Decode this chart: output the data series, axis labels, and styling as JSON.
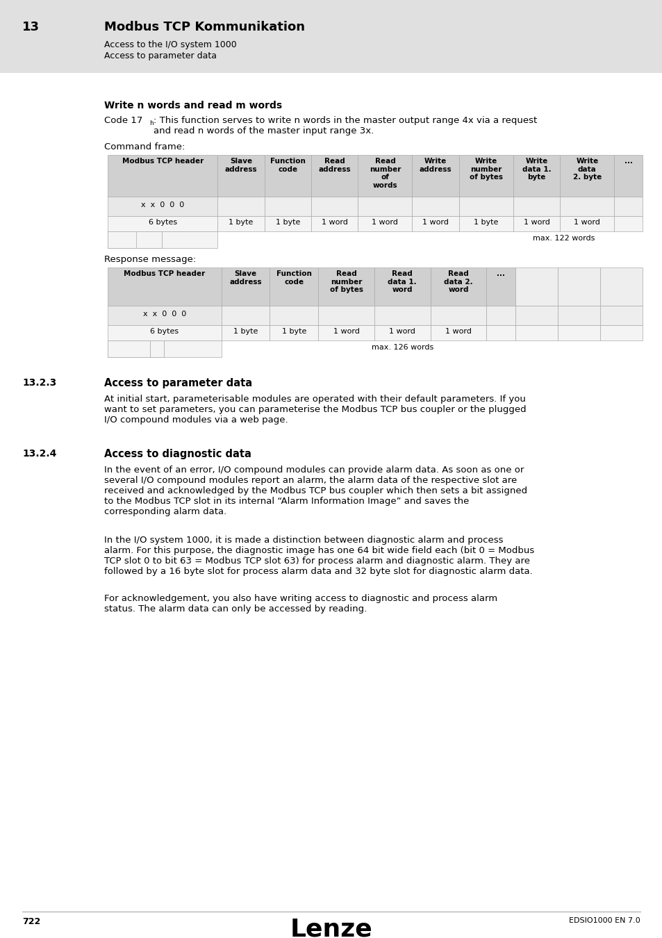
{
  "page_bg": "#ffffff",
  "header_bg": "#e0e0e0",
  "header_num": "13",
  "header_title": "Modbus TCP Kommunikation",
  "header_sub1": "Access to the I/O system 1000",
  "header_sub2": "Access to parameter data",
  "section_title": "Write n words and read m words",
  "code_rest": ": This function serves to write n words in the master output range 4x via a request\nand read n words of the master input range 3x.",
  "cmd_frame_label": "Command frame:",
  "cmd_headers": [
    "Modbus TCP header",
    "Slave\naddress",
    "Function\ncode",
    "Read\naddress",
    "Read\nnumber\nof\nwords",
    "Write\naddress",
    "Write\nnumber\nof bytes",
    "Write\ndata 1.\nbyte",
    "Write\ndata\n2. byte",
    "..."
  ],
  "cmd_row_xxx": "x  x  0  0  0",
  "cmd_row_sizes": [
    "6 bytes",
    "1 byte",
    "1 byte",
    "1 word",
    "1 word",
    "1 word",
    "1 byte",
    "1 word",
    "1 word",
    ""
  ],
  "cmd_max_text": "max. 122 words",
  "resp_msg_label": "Response message:",
  "resp_headers": [
    "Modbus TCP header",
    "Slave\naddress",
    "Function\ncode",
    "Read\nnumber\nof bytes",
    "Read\ndata 1.\nword",
    "Read\ndata 2.\nword",
    "...",
    "",
    "",
    ""
  ],
  "resp_row_xxx": "x  x  0  0  0",
  "resp_row_sizes": [
    "6 bytes",
    "1 byte",
    "1 byte",
    "1 word",
    "1 word",
    "1 word",
    "",
    "",
    "",
    ""
  ],
  "resp_max_text": "max. 126 words",
  "sec323_num": "13.2.3",
  "sec323_title": "Access to parameter data",
  "sec323_body": "At initial start, parameterisable modules are operated with their default parameters. If you\nwant to set parameters, you can parameterise the Modbus TCP bus coupler or the plugged\nI/O compound modules via a web page.",
  "sec324_num": "13.2.4",
  "sec324_title": "Access to diagnostic data",
  "sec324_para1": "In the event of an error, I/O compound modules can provide alarm data. As soon as one or\nseveral I/O compound modules report an alarm, the alarm data of the respective slot are\nreceived and acknowledged by the Modbus TCP bus coupler which then sets a bit assigned\nto the Modbus TCP slot in its internal “Alarm Information Image” and saves the\ncorresponding alarm data.",
  "sec324_para2": "In the I/O system 1000, it is made a distinction between diagnostic alarm and process\nalarm. For this purpose, the diagnostic image has one 64 bit wide field each (bit 0 = Modbus\nTCP slot 0 to bit 63 = Modbus TCP slot 63) for process alarm and diagnostic alarm. They are\nfollowed by a 16 byte slot for process alarm data and 32 byte slot for diagnostic alarm data.",
  "sec324_para3": "For acknowledgement, you also have writing access to diagnostic and process alarm\nstatus. The alarm data can only be accessed by reading.",
  "footer_page": "722",
  "footer_brand": "Lenze",
  "footer_doc": "EDSIO1000 EN 7.0"
}
